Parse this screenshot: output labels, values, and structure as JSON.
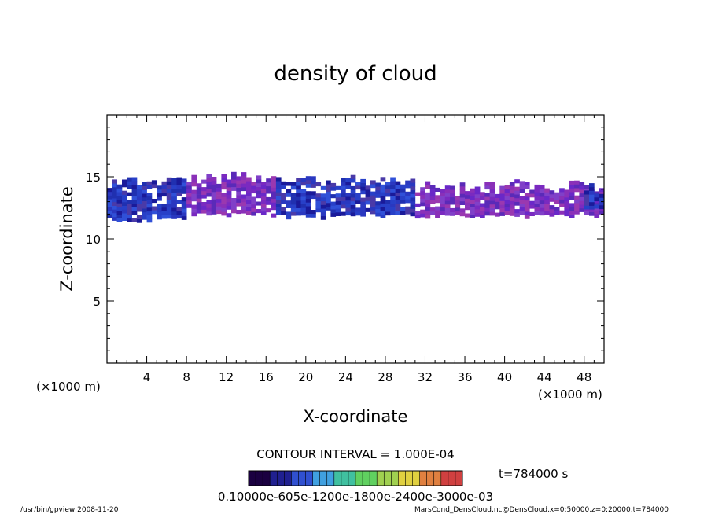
{
  "chart_data": {
    "type": "heatmap",
    "title": "density of cloud",
    "xlabel": "X-coordinate",
    "ylabel": "Z-coordinate",
    "x_unit": "(×1000 m)",
    "x_unit_right": "(×1000 m)",
    "xlim": [
      0,
      50
    ],
    "ylim": [
      0,
      20
    ],
    "x_ticks": [
      4,
      8,
      12,
      16,
      20,
      24,
      28,
      32,
      36,
      40,
      44,
      48
    ],
    "y_ticks": [
      5,
      10,
      15
    ],
    "contour_interval_label": "CONTOUR INTERVAL = 1.000E-04",
    "time_label": "t=784000 s",
    "colorbar_labels": "0.10000e-605e-1200e-1800e-2400e-3000e-03",
    "colorbar_colors": [
      "#1a0040",
      "#202090",
      "#3050d0",
      "#40a0e0",
      "#40c0a0",
      "#60d060",
      "#a0d050",
      "#e0d040",
      "#e08040",
      "#d04040"
    ],
    "cloud_band": {
      "segments": [
        {
          "x": [
            0,
            8
          ],
          "z": [
            11.5,
            14.5
          ],
          "density": "high"
        },
        {
          "x": [
            8,
            17
          ],
          "z": [
            12,
            14.8
          ],
          "density": "low"
        },
        {
          "x": [
            17,
            31
          ],
          "z": [
            11.8,
            14.5
          ],
          "density": "high"
        },
        {
          "x": [
            31,
            50
          ],
          "z": [
            11.8,
            14.2
          ],
          "density": "low"
        },
        {
          "x": [
            48,
            50
          ],
          "z": [
            12.5,
            14
          ],
          "density": "high"
        }
      ]
    },
    "footer_left": "/usr/bin/gpview   2008-11-20",
    "footer_right": "MarsCond_DensCloud.nc@DensCloud,x=0:50000,z=0:20000,t=784000"
  }
}
